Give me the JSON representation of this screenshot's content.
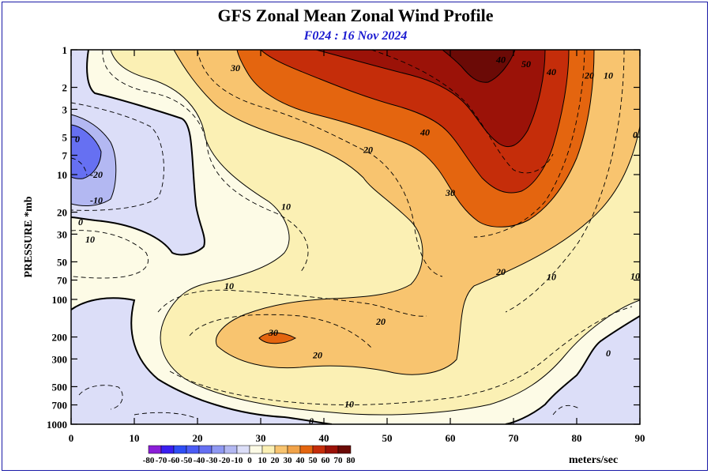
{
  "chart_data": {
    "type": "heatmap",
    "title": "GFS Zonal Mean Zonal Wind Profile",
    "subtitle": "F024 : 16 Nov 2024",
    "xlabel": "",
    "ylabel": "PRESSURE *mb",
    "xlim": [
      0,
      90
    ],
    "ylim": [
      1000,
      1
    ],
    "y_scale": "log",
    "x_ticks": [
      0,
      10,
      20,
      30,
      40,
      50,
      60,
      70,
      80,
      90
    ],
    "y_ticks": [
      "1",
      "2",
      "3",
      "5",
      "7",
      "10",
      "20",
      "30",
      "50",
      "70",
      "100",
      "200",
      "300",
      "500",
      "700",
      "1000"
    ],
    "y_tick_values": [
      1,
      2,
      3,
      5,
      7,
      10,
      20,
      30,
      50,
      70,
      100,
      200,
      300,
      500,
      700,
      1000
    ],
    "grid": false,
    "legend": {
      "placement": "bottom",
      "unit_label": "meters/sec",
      "labels": [
        "-80",
        "-70",
        "-60",
        "-50",
        "-40",
        "-30",
        "-20",
        "-10",
        "0",
        "10",
        "20",
        "30",
        "40",
        "50",
        "60",
        "70",
        "80"
      ],
      "colors": [
        "#8b1fd8",
        "#3a1ff0",
        "#2f4ef5",
        "#4c5cf5",
        "#6670f2",
        "#8f98f2",
        "#b3b8f2",
        "#dcdef8",
        "#fdfbe6",
        "#fbf0b4",
        "#f8c46f",
        "#f1a349",
        "#e4650f",
        "#c52d0a",
        "#9b1208",
        "#6b0a06"
      ]
    },
    "contour_labels": [
      {
        "value": "30",
        "x": 26,
        "y": 1.4
      },
      {
        "value": "40",
        "x": 68,
        "y": 1.2
      },
      {
        "value": "50",
        "x": 72,
        "y": 1.3
      },
      {
        "value": "40",
        "x": 76,
        "y": 1.5
      },
      {
        "value": "20",
        "x": 82,
        "y": 1.6
      },
      {
        "value": "10",
        "x": 85,
        "y": 1.6
      },
      {
        "value": "0",
        "x": 0,
        "y": 5.2
      },
      {
        "value": "0",
        "x": 90,
        "y": 4.8
      },
      {
        "value": "40",
        "x": 56,
        "y": 4.6
      },
      {
        "value": "20",
        "x": 47,
        "y": 6.3
      },
      {
        "value": "-20",
        "x": 4,
        "y": 10
      },
      {
        "value": "-10",
        "x": 4,
        "y": 16
      },
      {
        "value": "10",
        "x": 34,
        "y": 18
      },
      {
        "value": "30",
        "x": 60,
        "y": 14
      },
      {
        "value": "0",
        "x": 1.5,
        "y": 24
      },
      {
        "value": "10",
        "x": 3,
        "y": 33
      },
      {
        "value": "20",
        "x": 68,
        "y": 60
      },
      {
        "value": "10",
        "x": 76,
        "y": 66
      },
      {
        "value": "10",
        "x": 90,
        "y": 65
      },
      {
        "value": "10",
        "x": 25,
        "y": 78
      },
      {
        "value": "30",
        "x": 32,
        "y": 185
      },
      {
        "value": "20",
        "x": 49,
        "y": 150
      },
      {
        "value": "20",
        "x": 39,
        "y": 280
      },
      {
        "value": "0",
        "x": 85,
        "y": 270
      },
      {
        "value": "10",
        "x": 44,
        "y": 690
      },
      {
        "value": "0",
        "x": 38,
        "y": 960
      }
    ]
  }
}
